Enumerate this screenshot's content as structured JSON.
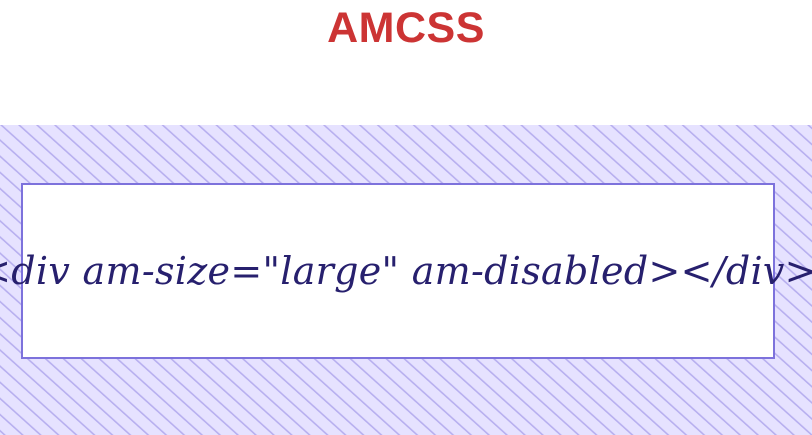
{
  "slide": {
    "title": "AMCSS",
    "code": "<div am-size=\"large\" am-disabled></div>"
  },
  "colors": {
    "title": "#cc3434",
    "hatch_fill": "#e6e2ff",
    "hatch_stroke": "#b7afef",
    "box_border": "#7d72dc",
    "code_text": "#27206e"
  }
}
